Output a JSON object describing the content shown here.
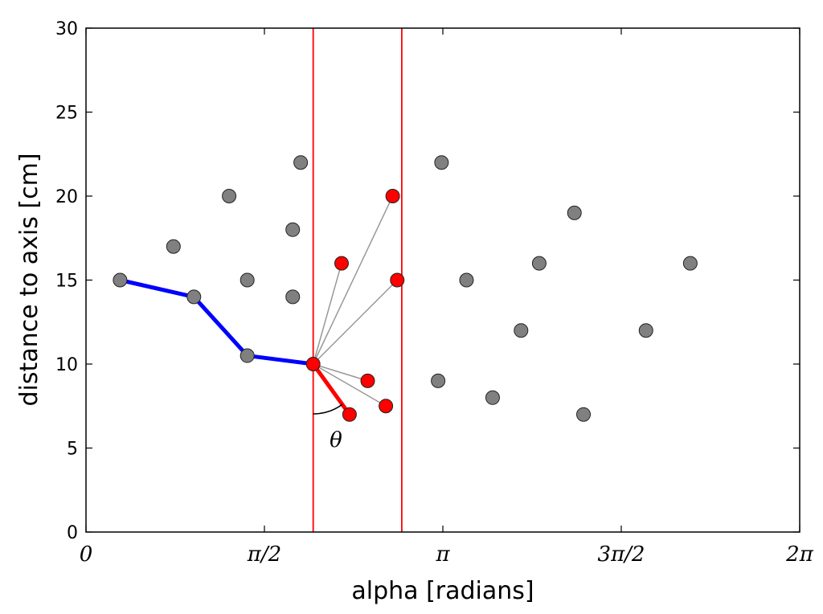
{
  "chart_data": {
    "type": "scatter",
    "title": "",
    "xlabel": "alpha [radians]",
    "ylabel": "distance to axis [cm]",
    "xlim": [
      0,
      6.2832
    ],
    "ylim": [
      0,
      30
    ],
    "x_ticks": [
      {
        "value": 0,
        "label": "0"
      },
      {
        "value": 1.5708,
        "label": "π/2"
      },
      {
        "value": 3.1416,
        "label": "π"
      },
      {
        "value": 4.7124,
        "label": "3π/2"
      },
      {
        "value": 6.2832,
        "label": "2π"
      }
    ],
    "y_ticks": [
      {
        "value": 0,
        "label": "0"
      },
      {
        "value": 5,
        "label": "5"
      },
      {
        "value": 10,
        "label": "10"
      },
      {
        "value": 15,
        "label": "15"
      },
      {
        "value": 20,
        "label": "20"
      },
      {
        "value": 25,
        "label": "25"
      },
      {
        "value": 30,
        "label": "30"
      }
    ],
    "grid": false,
    "vertical_lines": [
      2.0,
      2.78
    ],
    "vertical_line_color": "#ff0000",
    "gray_points": [
      [
        0.77,
        17
      ],
      [
        1.26,
        20
      ],
      [
        1.42,
        15
      ],
      [
        1.82,
        18
      ],
      [
        1.82,
        14
      ],
      [
        1.89,
        22
      ],
      [
        3.1,
        9
      ],
      [
        3.13,
        22
      ],
      [
        3.35,
        15
      ],
      [
        3.58,
        8
      ],
      [
        3.83,
        12
      ],
      [
        3.99,
        16
      ],
      [
        4.3,
        19
      ],
      [
        4.38,
        7
      ],
      [
        4.93,
        12
      ],
      [
        5.32,
        16
      ]
    ],
    "blue_path": [
      [
        0.3,
        15
      ],
      [
        0.95,
        14
      ],
      [
        1.42,
        10.5
      ],
      [
        2.0,
        10
      ]
    ],
    "red_origin": [
      2.0,
      10
    ],
    "red_points": [
      [
        2.25,
        16
      ],
      [
        2.7,
        20
      ],
      [
        2.74,
        15
      ],
      [
        2.48,
        9
      ],
      [
        2.64,
        7.5
      ],
      [
        2.32,
        7
      ]
    ],
    "red_selected": [
      2.32,
      7
    ],
    "annotation": {
      "text": "θ",
      "x": 2.2,
      "y": 5.5
    },
    "colors": {
      "gray_point": "#808080",
      "red_point": "#ff0000",
      "blue_line": "#0000ff",
      "red_line": "#ff0000",
      "connector": "#999999"
    }
  }
}
